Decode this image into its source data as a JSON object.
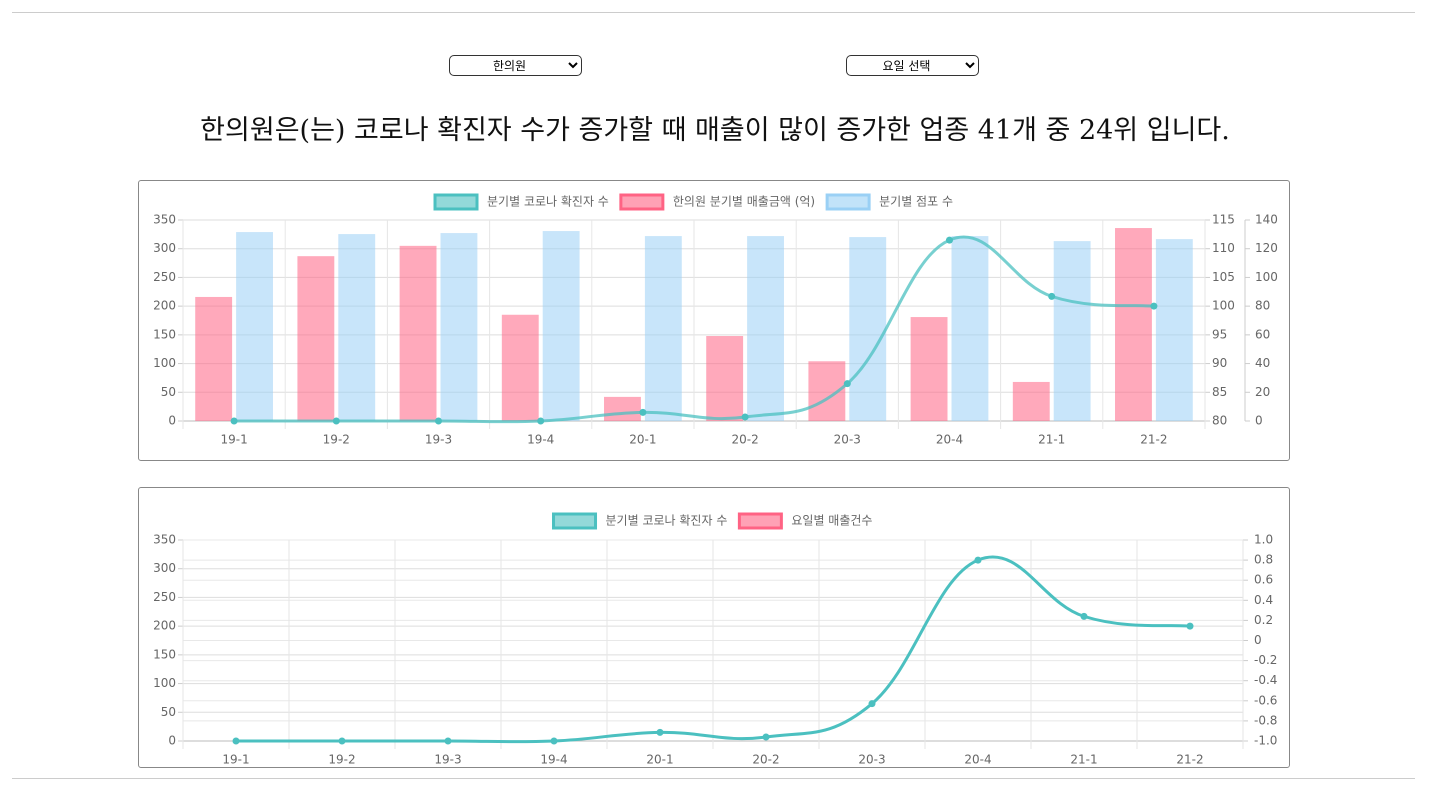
{
  "controls": {
    "industry": "한의원",
    "weekday": "요일 선택"
  },
  "headline": "한의원은(는) 코로나 확진자 수가 증가할 때 매출이 많이 증가한 업종 41개 중 24위 입니다.",
  "chart_data": [
    {
      "type": "bar",
      "categories": [
        "19-1",
        "19-2",
        "19-3",
        "19-4",
        "20-1",
        "20-2",
        "20-3",
        "20-4",
        "21-1",
        "21-2"
      ],
      "series": [
        {
          "name": "분기별 코로나 확진자 수",
          "type": "line",
          "color": "#4bc0c0",
          "axis": "y",
          "values": [
            0,
            0,
            0,
            0,
            15,
            7,
            65,
            315,
            217,
            200
          ]
        },
        {
          "name": "한의원 분기별 매출금액 (억)",
          "type": "bar",
          "color": "#ff6384",
          "axis": "y2",
          "values": [
            101.6,
            108.7,
            110.5,
            98.5,
            84.2,
            94.8,
            90.4,
            98.1,
            86.8,
            113.6
          ]
        },
        {
          "name": "분기별 점포 수",
          "type": "bar",
          "color": "#9ad0f5",
          "axis": "y3",
          "values": [
            131.6,
            130.2,
            130.9,
            132.3,
            128.8,
            128.8,
            128.1,
            128.8,
            125.3,
            126.7
          ]
        }
      ],
      "ylim": [
        0,
        350
      ],
      "yticks": [
        0,
        50,
        100,
        150,
        200,
        250,
        300,
        350
      ],
      "y2lim": [
        80,
        115
      ],
      "y2ticks": [
        80,
        85,
        90,
        95,
        100,
        105,
        110,
        115
      ],
      "y3lim": [
        0,
        140
      ],
      "y3ticks": [
        0,
        20,
        40,
        60,
        80,
        100,
        120,
        140
      ],
      "grid": [
        "y",
        "x"
      ]
    },
    {
      "type": "line",
      "categories": [
        "19-1",
        "19-2",
        "19-3",
        "19-4",
        "20-1",
        "20-2",
        "20-3",
        "20-4",
        "21-1",
        "21-2"
      ],
      "series": [
        {
          "name": "분기별 코로나 확진자 수",
          "type": "line",
          "color": "#4bc0c0",
          "axis": "y",
          "values": [
            0,
            0,
            0,
            0,
            15,
            7,
            65,
            315,
            217,
            200
          ]
        },
        {
          "name": "요일별 매출건수",
          "type": "line",
          "color": "#ff6384",
          "axis": "y2",
          "values": [
            null,
            null,
            null,
            null,
            null,
            null,
            null,
            null,
            null,
            null
          ]
        }
      ],
      "ylim": [
        0,
        350
      ],
      "yticks": [
        0,
        50,
        100,
        150,
        200,
        250,
        300,
        350
      ],
      "y2lim": [
        -1,
        1
      ],
      "y2ticks": [
        {
          "value": -1,
          "label": "-1.0"
        },
        -0.8,
        -0.6,
        -0.4,
        -0.2,
        0,
        0.2,
        0.4,
        0.6,
        0.8,
        {
          "value": 1,
          "label": "1.0"
        }
      ],
      "grid": [
        "y",
        "y2",
        "x"
      ]
    }
  ]
}
